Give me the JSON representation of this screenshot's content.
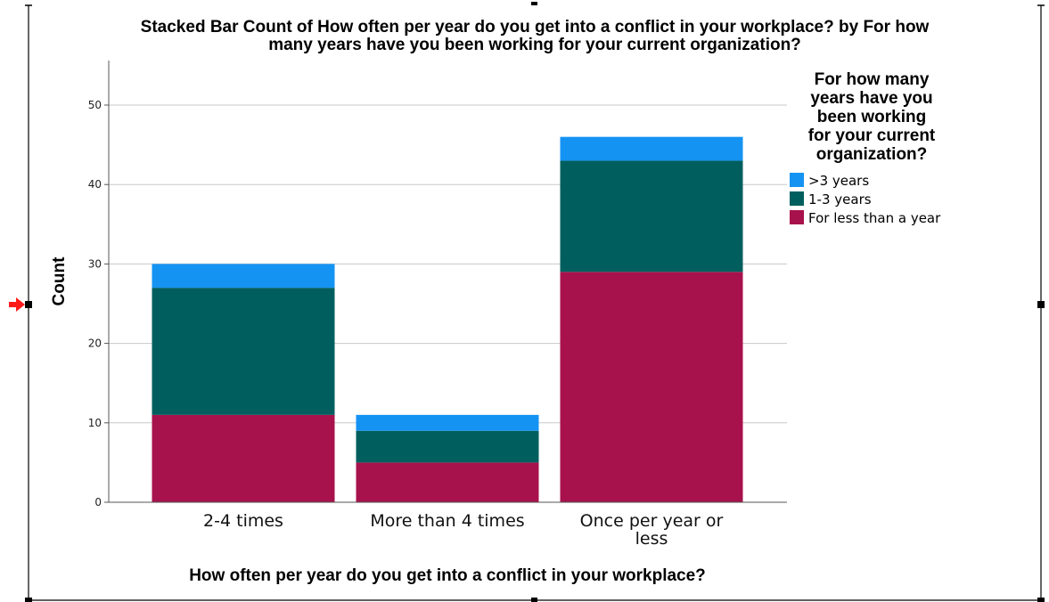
{
  "chart_data": {
    "type": "bar",
    "stacked": true,
    "title_lines": [
      "Stacked Bar Count of How often per year do you get into a conflict in your workplace? by For how",
      "many years have you been working for your current organization?"
    ],
    "xlabel": "How often per year do you get into a conflict in your workplace?",
    "ylabel": "Count",
    "categories": [
      "2-4 times",
      "More than 4 times",
      "Once per year or less"
    ],
    "category_label_lines": [
      [
        "2-4 times"
      ],
      [
        "More than 4 times"
      ],
      [
        "Once per year or",
        "less"
      ]
    ],
    "ylim": [
      0,
      55
    ],
    "yticks": [
      0,
      10,
      20,
      30,
      40,
      50
    ],
    "grid": true,
    "legend": {
      "title_lines": [
        "For how many",
        "years have you",
        "been working",
        "for your current",
        "organization?"
      ],
      "placement": "right",
      "entries": [
        ">3 years",
        "1-3 years",
        "For less than a year"
      ]
    },
    "series": [
      {
        "name": "For less than a year",
        "color": "#A8124C",
        "values": [
          11,
          5,
          29
        ]
      },
      {
        "name": "1-3 years",
        "color": "#005F5E",
        "values": [
          16,
          4,
          14
        ]
      },
      {
        "name": ">3 years",
        "color": "#1593F3",
        "values": [
          3,
          2,
          3
        ]
      }
    ]
  }
}
